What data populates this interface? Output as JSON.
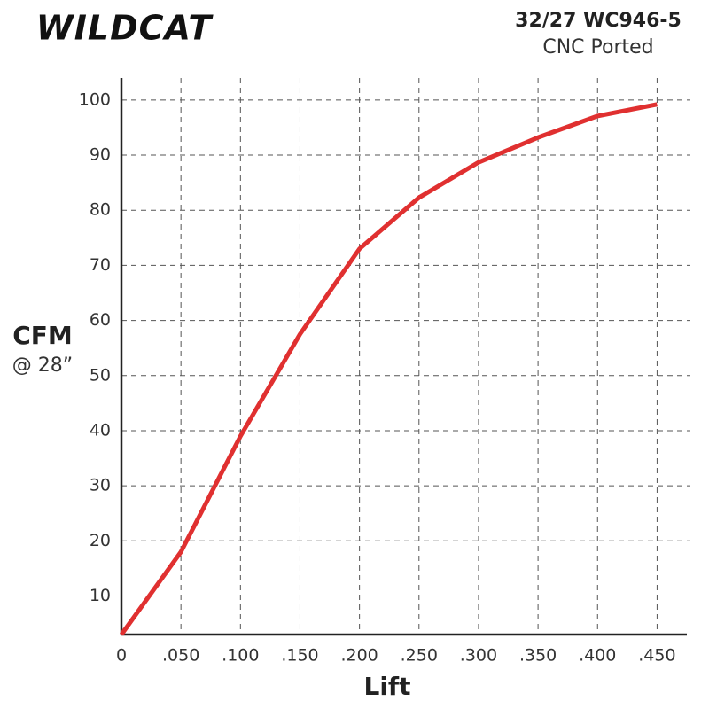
{
  "chart_data": {
    "type": "line",
    "brand": "WILDCAT",
    "title": "32/27 WC946-5",
    "subtitle": "CNC Ported",
    "y_label": "CFM",
    "y_label_sub": "@ 28”",
    "x_label": "Lift",
    "x": [
      0,
      0.05,
      0.1,
      0.15,
      0.2,
      0.25,
      0.3,
      0.35,
      0.4,
      0.45
    ],
    "series": [
      {
        "name": "CFM",
        "color": "#e03030",
        "values": [
          3,
          18,
          39,
          57.5,
          73,
          82.3,
          88.7,
          93.2,
          97.1,
          99.2
        ]
      }
    ],
    "xlim": [
      0,
      0.475
    ],
    "ylim": [
      3,
      104
    ],
    "xticks": [
      0,
      {
        "value": 0.05,
        "label": ".050"
      },
      {
        "value": 0.1,
        "label": ".100"
      },
      {
        "value": 0.15,
        "label": ".150"
      },
      {
        "value": 0.2,
        "label": ".200"
      },
      {
        "value": 0.25,
        "label": ".250"
      },
      {
        "value": 0.3,
        "label": ".300"
      },
      {
        "value": 0.35,
        "label": ".350"
      },
      {
        "value": 0.4,
        "label": ".400"
      },
      {
        "value": 0.45,
        "label": ".450"
      }
    ],
    "yticks": [
      10,
      20,
      30,
      40,
      50,
      60,
      70,
      80,
      90,
      100
    ],
    "grid": true
  }
}
